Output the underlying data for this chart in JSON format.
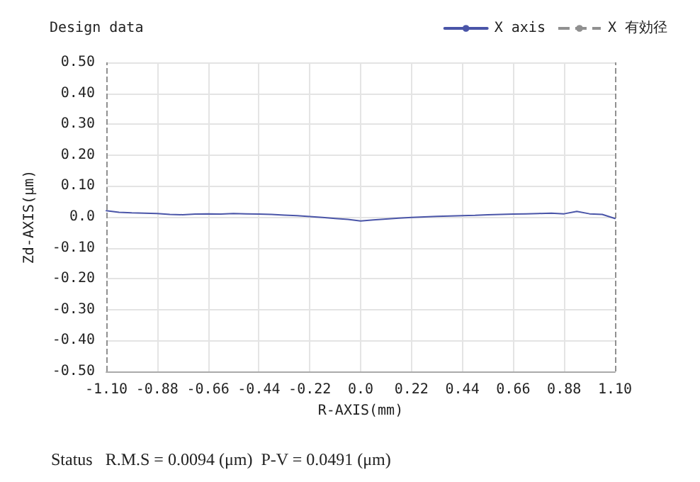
{
  "chart_data": {
    "type": "line",
    "title": "Design data",
    "xlabel": "R-AXIS(mm)",
    "ylabel": "Zd-AXIS(μm)",
    "annotations": [
      "Status   R.M.S = 0.0094 (μm)  P-V = 0.0491 (μm)"
    ],
    "x": [
      -1.1,
      -1.045,
      -0.99,
      -0.935,
      -0.88,
      -0.825,
      -0.77,
      -0.715,
      -0.66,
      -0.605,
      -0.55,
      -0.495,
      -0.44,
      -0.385,
      -0.33,
      -0.275,
      -0.22,
      -0.165,
      -0.11,
      -0.055,
      0,
      0.055,
      0.11,
      0.165,
      0.22,
      0.275,
      0.33,
      0.385,
      0.44,
      0.495,
      0.55,
      0.605,
      0.66,
      0.715,
      0.77,
      0.825,
      0.88,
      0.935,
      0.99,
      1.045,
      1.1
    ],
    "series": [
      {
        "name": "X axis",
        "color": "#4a55a8",
        "values": [
          0.02,
          0.015,
          0.013,
          0.012,
          0.011,
          0.008,
          0.007,
          0.009,
          0.01,
          0.009,
          0.011,
          0.01,
          0.009,
          0.008,
          0.006,
          0.004,
          0.001,
          -0.002,
          -0.005,
          -0.008,
          -0.013,
          -0.01,
          -0.007,
          -0.004,
          -0.002,
          0.0,
          0.002,
          0.003,
          0.004,
          0.005,
          0.007,
          0.008,
          0.009,
          0.01,
          0.011,
          0.012,
          0.01,
          0.018,
          0.01,
          0.008,
          -0.005
        ]
      }
    ],
    "ref_lines": [
      {
        "axis": "x",
        "value": -1.1,
        "label": "X 有効径",
        "color": "#909090",
        "line_style": "dashed"
      },
      {
        "axis": "x",
        "value": 1.1,
        "color": "#909090",
        "line_style": "dashed"
      }
    ],
    "xlim": [
      -1.1,
      1.1
    ],
    "xticks": [
      {
        "value": -1.1,
        "label": "-1.10"
      },
      {
        "value": -0.88,
        "label": "-0.88"
      },
      {
        "value": -0.66,
        "label": "-0.66"
      },
      {
        "value": -0.44,
        "label": "-0.44"
      },
      {
        "value": -0.22,
        "label": "-0.22"
      },
      {
        "value": 0,
        "label": "0.0"
      },
      {
        "value": 0.22,
        "label": "0.22"
      },
      {
        "value": 0.44,
        "label": "0.44"
      },
      {
        "value": 0.66,
        "label": "0.66"
      },
      {
        "value": 0.88,
        "label": "0.88"
      },
      {
        "value": 1.1,
        "label": "1.10"
      }
    ],
    "ylim": [
      -0.5,
      0.5
    ],
    "yticks": [
      {
        "value": -0.5,
        "label": "-0.50"
      },
      {
        "value": -0.4,
        "label": "-0.40"
      },
      {
        "value": -0.3,
        "label": "-0.30"
      },
      {
        "value": -0.2,
        "label": "-0.20"
      },
      {
        "value": -0.1,
        "label": "-0.10"
      },
      {
        "value": 0,
        "label": "0.0"
      },
      {
        "value": 0.1,
        "label": "0.10"
      },
      {
        "value": 0.2,
        "label": "0.20"
      },
      {
        "value": 0.3,
        "label": "0.30"
      },
      {
        "value": 0.4,
        "label": "0.40"
      },
      {
        "value": 0.5,
        "label": "0.50"
      }
    ],
    "grid": true,
    "legend": "top right",
    "marker": "none",
    "line_style": "solid"
  }
}
